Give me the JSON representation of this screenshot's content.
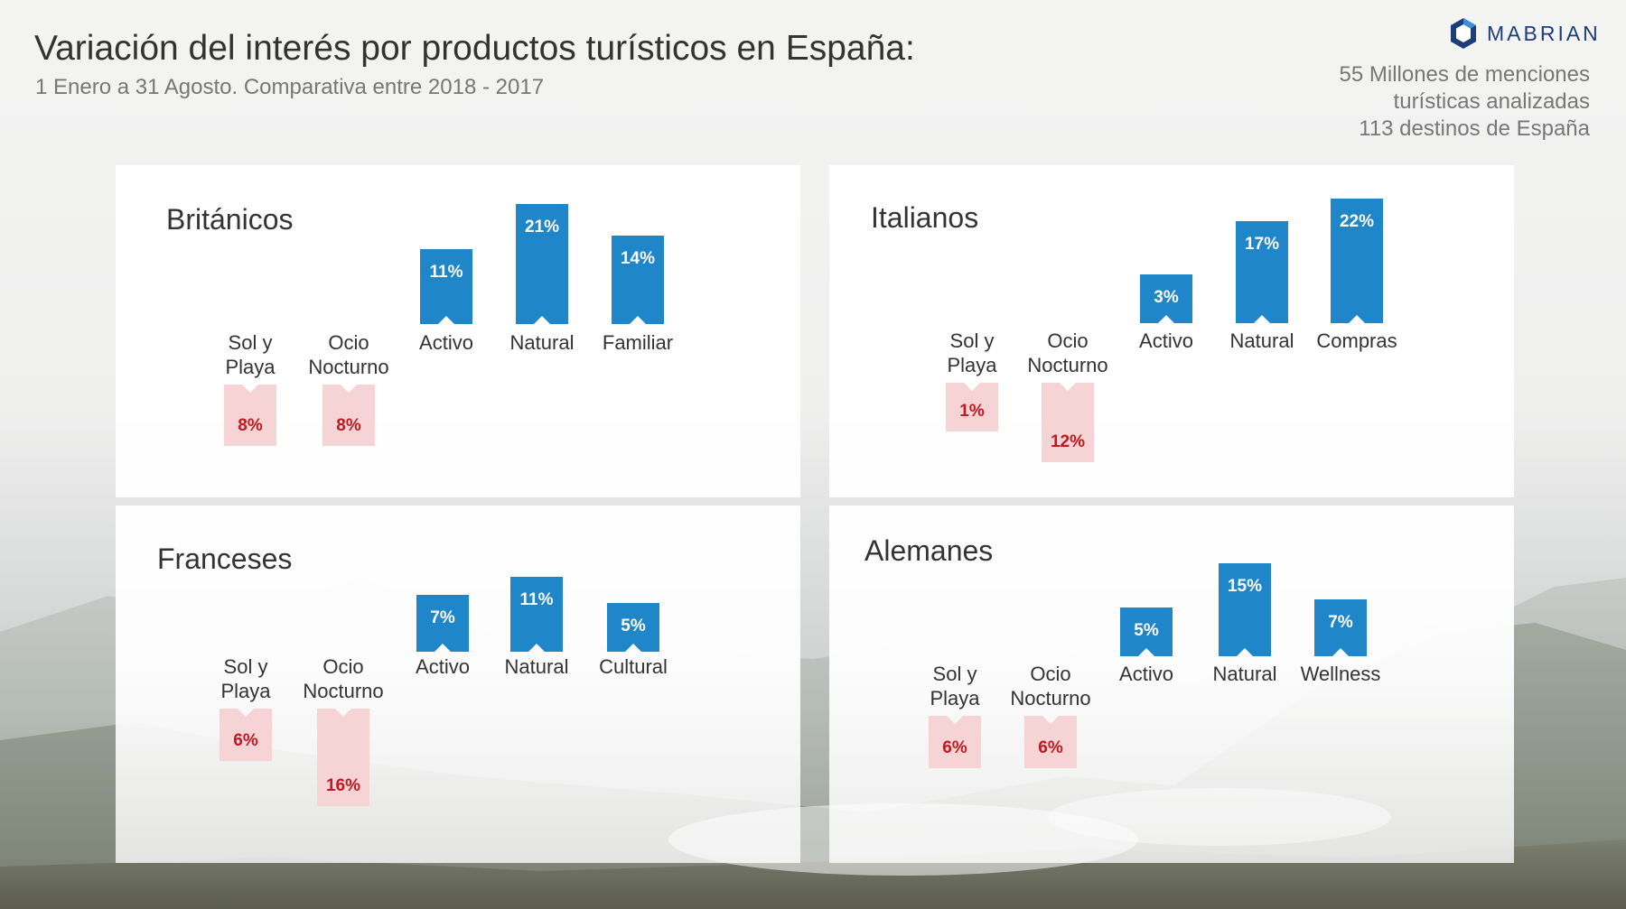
{
  "header": {
    "title": "Variación del interés por productos turísticos en España:",
    "subtitle": "1 Enero a 31 Agosto. Comparativa entre  2018 - 2017",
    "stats": [
      "55 Millones de menciones",
      "turísticas analizadas",
      "113 destinos de España"
    ],
    "logo_text": "MABRIAN",
    "logo_icon": "hexagon-logo-icon"
  },
  "colors": {
    "positive": "#1f86c9",
    "negative_fill": "#f6d4d6",
    "negative_text": "#c0191f",
    "positive_text": "#ffffff",
    "brand": "#1c3f7a"
  },
  "chart_data": [
    {
      "type": "bar",
      "title": "Británicos",
      "categories": [
        "Sol y\nPlaya",
        "Ocio\nNocturno",
        "Activo",
        "Natural",
        "Familiar"
      ],
      "values": [
        -8,
        -8,
        11,
        21,
        14
      ],
      "labels": [
        "8%",
        "8%",
        "11%",
        "21%",
        "14%"
      ],
      "unit": "%"
    },
    {
      "type": "bar",
      "title": "Italianos",
      "categories": [
        "Sol y\nPlaya",
        "Ocio\nNocturno",
        "Activo",
        "Natural",
        "Compras"
      ],
      "values": [
        -1,
        -12,
        3,
        17,
        22
      ],
      "labels": [
        "1%",
        "12%",
        "3%",
        "17%",
        "22%"
      ],
      "unit": "%"
    },
    {
      "type": "bar",
      "title": "Franceses",
      "categories": [
        "Sol y\nPlaya",
        "Ocio\nNocturno",
        "Activo",
        "Natural",
        "Cultural"
      ],
      "values": [
        -6,
        -16,
        7,
        11,
        5
      ],
      "labels": [
        "6%",
        "16%",
        "7%",
        "11%",
        "5%"
      ],
      "unit": "%"
    },
    {
      "type": "bar",
      "title": "Alemanes",
      "categories": [
        "Sol y\nPlaya",
        "Ocio\nNocturno",
        "Activo",
        "Natural",
        "Wellness"
      ],
      "values": [
        -6,
        -6,
        5,
        15,
        7
      ],
      "labels": [
        "6%",
        "6%",
        "5%",
        "15%",
        "7%"
      ],
      "unit": "%"
    }
  ]
}
